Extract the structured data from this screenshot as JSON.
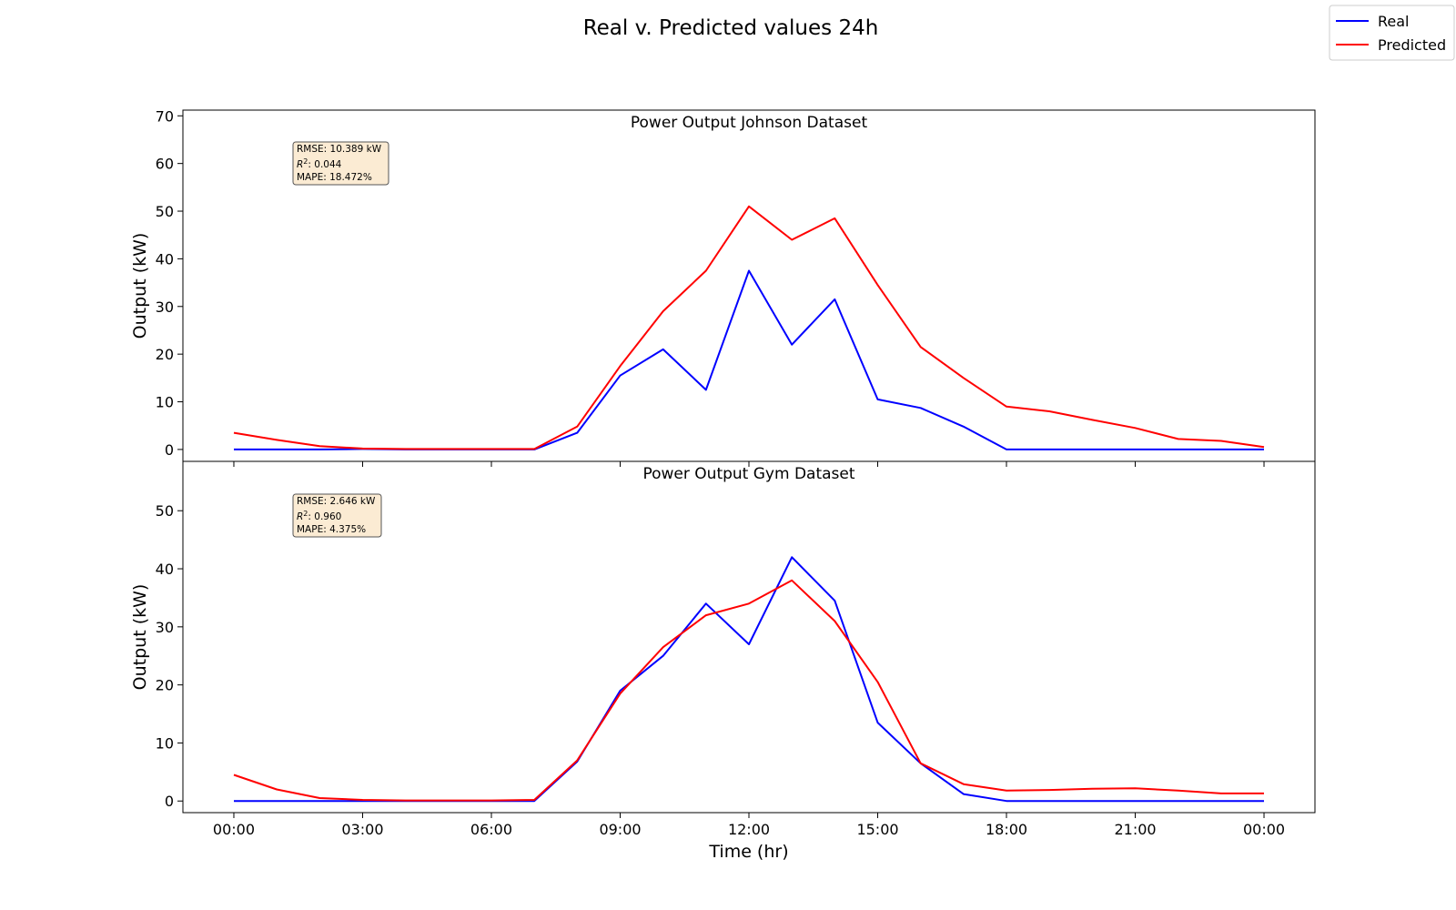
{
  "figure": {
    "title": "Real v. Predicted values 24h",
    "xlabel": "Time (hr)",
    "legend": {
      "placement": "top-right",
      "items": [
        {
          "label": "Real",
          "color": "#0000ff"
        },
        {
          "label": "Predicted",
          "color": "#ff0000"
        }
      ]
    }
  },
  "chart_data": [
    {
      "type": "line",
      "title": "Power Output Johnson Dataset",
      "ylabel": "Output (kW)",
      "xlabel": "Time (hr)",
      "ylim": [
        -2.5,
        71.2
      ],
      "yticks": [
        0,
        10,
        20,
        30,
        40,
        50,
        60,
        70
      ],
      "x": [
        "00:00",
        "01:00",
        "02:00",
        "03:00",
        "04:00",
        "05:00",
        "06:00",
        "07:00",
        "08:00",
        "09:00",
        "10:00",
        "11:00",
        "12:00",
        "13:00",
        "14:00",
        "15:00",
        "16:00",
        "17:00",
        "18:00",
        "19:00",
        "20:00",
        "21:00",
        "22:00",
        "23:00",
        "00:00"
      ],
      "xticks": [
        "00:00",
        "03:00",
        "06:00",
        "09:00",
        "12:00",
        "15:00",
        "18:00",
        "21:00",
        "00:00"
      ],
      "series": [
        {
          "name": "Real",
          "color": "#0000ff",
          "values": [
            0,
            0,
            0,
            0.1,
            0,
            0,
            0,
            0,
            3.5,
            15.5,
            21,
            12.5,
            37.5,
            22,
            31.5,
            10.5,
            8.7,
            4.8,
            0,
            0,
            0,
            0,
            0,
            0,
            0
          ]
        },
        {
          "name": "Predicted",
          "color": "#ff0000",
          "values": [
            3.5,
            2,
            0.7,
            0.2,
            0.1,
            0.1,
            0.1,
            0.1,
            4.8,
            17.5,
            29,
            37.5,
            51,
            44,
            48.5,
            34.5,
            21.5,
            15,
            9,
            8,
            6.2,
            4.5,
            2.2,
            1.8,
            0.5
          ]
        }
      ],
      "stats": {
        "rmse": "RMSE: 10.389 kW",
        "r2_symbol": "R",
        "r2_sup": "2",
        "r2_value": ": 0.044",
        "mape": "MAPE: 18.472%"
      },
      "grid": false
    },
    {
      "type": "line",
      "title": "Power Output Gym Dataset",
      "ylabel": "Output (kW)",
      "xlabel": "Time (hr)",
      "ylim": [
        -2,
        58.5
      ],
      "yticks": [
        0,
        10,
        20,
        30,
        40,
        50
      ],
      "x": [
        "00:00",
        "01:00",
        "02:00",
        "03:00",
        "04:00",
        "05:00",
        "06:00",
        "07:00",
        "08:00",
        "09:00",
        "10:00",
        "11:00",
        "12:00",
        "13:00",
        "14:00",
        "15:00",
        "16:00",
        "17:00",
        "18:00",
        "19:00",
        "20:00",
        "21:00",
        "22:00",
        "23:00",
        "00:00"
      ],
      "xticks": [
        "00:00",
        "03:00",
        "06:00",
        "09:00",
        "12:00",
        "15:00",
        "18:00",
        "21:00",
        "00:00"
      ],
      "series": [
        {
          "name": "Real",
          "color": "#0000ff",
          "values": [
            0,
            0,
            0,
            0,
            0,
            0,
            0,
            0,
            6.8,
            19,
            25,
            34,
            27,
            42,
            34.5,
            13.5,
            6.5,
            1.2,
            0,
            0,
            0,
            0,
            0,
            0,
            0
          ]
        },
        {
          "name": "Predicted",
          "color": "#ff0000",
          "values": [
            4.5,
            2,
            0.5,
            0.2,
            0.1,
            0.1,
            0.1,
            0.2,
            7,
            18.5,
            26.5,
            32,
            34,
            38,
            31,
            20.5,
            6.5,
            2.9,
            1.8,
            1.9,
            2.1,
            2.2,
            1.8,
            1.3,
            1.3
          ]
        }
      ],
      "stats": {
        "rmse": "RMSE: 2.646 kW",
        "r2_symbol": "R",
        "r2_sup": "2",
        "r2_value": ": 0.960",
        "mape": "MAPE: 4.375%"
      },
      "grid": false
    }
  ]
}
